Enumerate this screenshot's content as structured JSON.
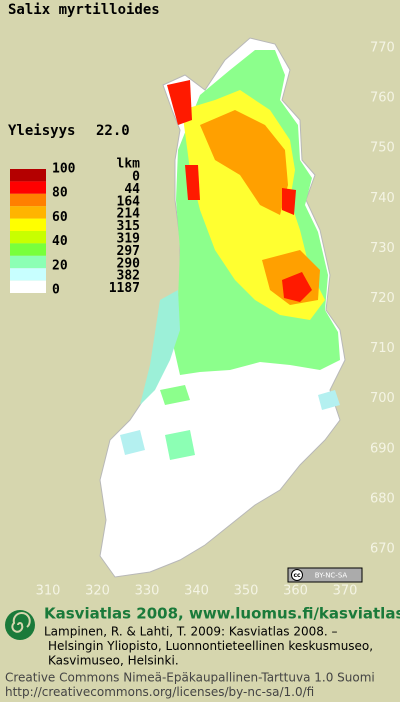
{
  "title": "Salix myrtilloides",
  "frequency": {
    "label": "Yleisyys",
    "value": "22.0"
  },
  "legend": {
    "header": "lkm",
    "scale_labels": [
      100,
      80,
      60,
      40,
      20,
      0
    ],
    "bins": [
      {
        "color": "#b40000",
        "count": 0
      },
      {
        "color": "#ff0000",
        "count": 44
      },
      {
        "color": "#ff8000",
        "count": 164
      },
      {
        "color": "#ffb400",
        "count": 214
      },
      {
        "color": "#ffff00",
        "count": 315
      },
      {
        "color": "#c8ff00",
        "count": 319
      },
      {
        "color": "#78ff3c",
        "count": 297
      },
      {
        "color": "#8cffb4",
        "count": 290
      },
      {
        "color": "#c8ffff",
        "count": 382
      },
      {
        "color": "#ffffff",
        "count": 1187
      }
    ]
  },
  "axis": {
    "right": [
      770,
      760,
      750,
      740,
      730,
      720,
      710,
      700,
      690,
      680,
      670
    ],
    "bottom": [
      310,
      320,
      330,
      340,
      350,
      360,
      370
    ]
  },
  "license_badge": "BY-NC-SA",
  "footer": {
    "heading": "Kasviatlas 2008, www.luomus.fi/kasviatlas",
    "citation": [
      "Lampinen, R. & Lahti, T. 2009: Kasviatlas 2008. –",
      "Helsingin Yliopisto, Luonnontieteellinen keskusmuseo,",
      "Kasvimuseo, Helsinki."
    ],
    "license": [
      "Creative Commons Nimeä-Epäkaupallinen-Tarttuva 1.0 Suomi",
      "http://creativecommons.org/licenses/by-nc-sa/1.0/fi"
    ]
  }
}
